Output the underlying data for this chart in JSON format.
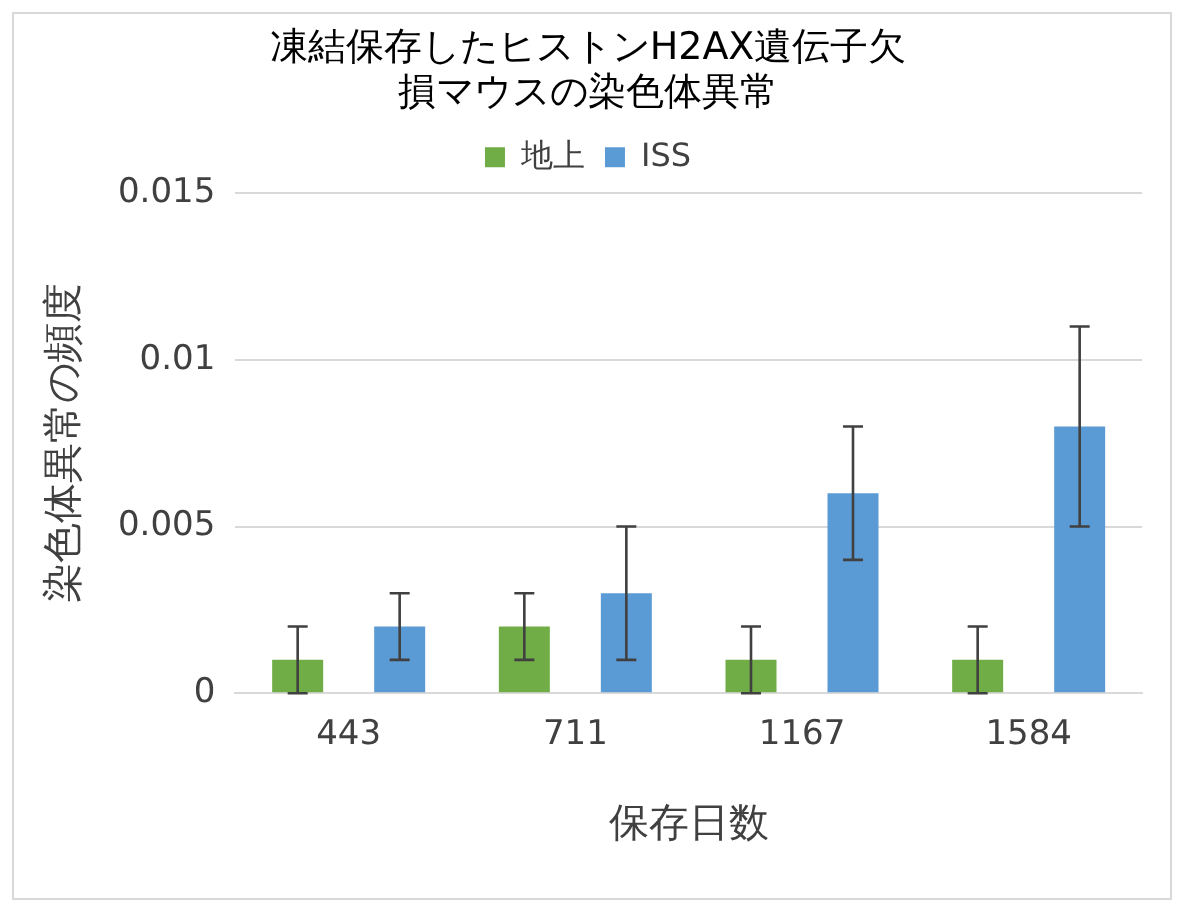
{
  "chart_data": {
    "type": "bar",
    "title": "凍結保存したヒストンH2AX遺伝子欠損マウスの染色体異常",
    "xlabel": "保存日数",
    "ylabel": "染色体異常の頻度",
    "categories": [
      "443",
      "711",
      "1167",
      "1584"
    ],
    "series": [
      {
        "name": "地上",
        "color": "#70ad47",
        "values": [
          0.001,
          0.002,
          0.001,
          0.001
        ],
        "errors": [
          0.001,
          0.001,
          0.001,
          0.001
        ]
      },
      {
        "name": "ISS",
        "color": "#5b9bd5",
        "values": [
          0.002,
          0.003,
          0.006,
          0.008
        ],
        "errors": [
          0.001,
          0.002,
          0.002,
          0.003
        ]
      }
    ],
    "ylim": [
      0,
      0.015
    ],
    "yticks": [
      0,
      0.005,
      0.01,
      0.015
    ],
    "grid": "y",
    "legend": "top"
  }
}
